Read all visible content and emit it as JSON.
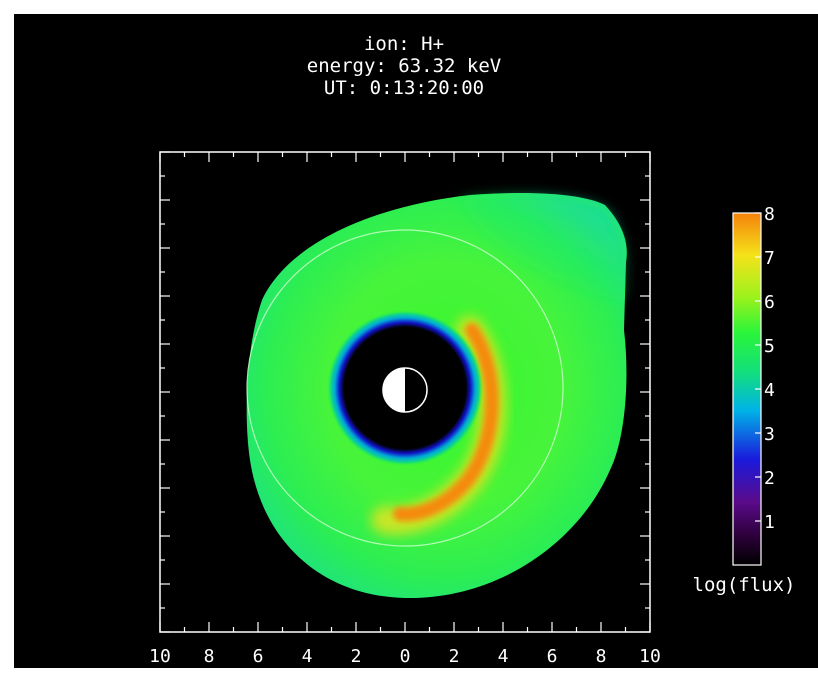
{
  "header": {
    "ion_line": "ion: H+",
    "energy_line": "energy:  63.32 keV",
    "ut_line": "UT:  0:13:20:00"
  },
  "colors": {
    "background": "#000000",
    "frame": "#ffffff",
    "colormap": [
      "#000000",
      "#2b0038",
      "#5a0a8a",
      "#1a1adc",
      "#00b4e6",
      "#12e07a",
      "#2af53a",
      "#9bf21c",
      "#f5e21a",
      "#f5820a"
    ]
  },
  "chart_data": {
    "type": "heatmap",
    "title": "ion: H+ / energy:  63.32 keV / UT:  0:13:20:00",
    "xlabel": "",
    "ylabel": "",
    "xlim": [
      -10,
      10
    ],
    "ylim": [
      -10,
      10
    ],
    "x_tick_labels": [
      "10",
      "8",
      "6",
      "4",
      "2",
      "0",
      "2",
      "4",
      "6",
      "8",
      "10"
    ],
    "colorbar": {
      "label": "log(flux)",
      "range": [
        0,
        8
      ],
      "tick_labels": [
        "1",
        "2",
        "3",
        "4",
        "5",
        "6",
        "7",
        "8"
      ]
    },
    "inner_boundary_radius": 3.5,
    "reference_circle_radius": 10,
    "earth_radius": 1,
    "outer_flux_log": 6,
    "enhancement_peak_log": 7.5
  }
}
